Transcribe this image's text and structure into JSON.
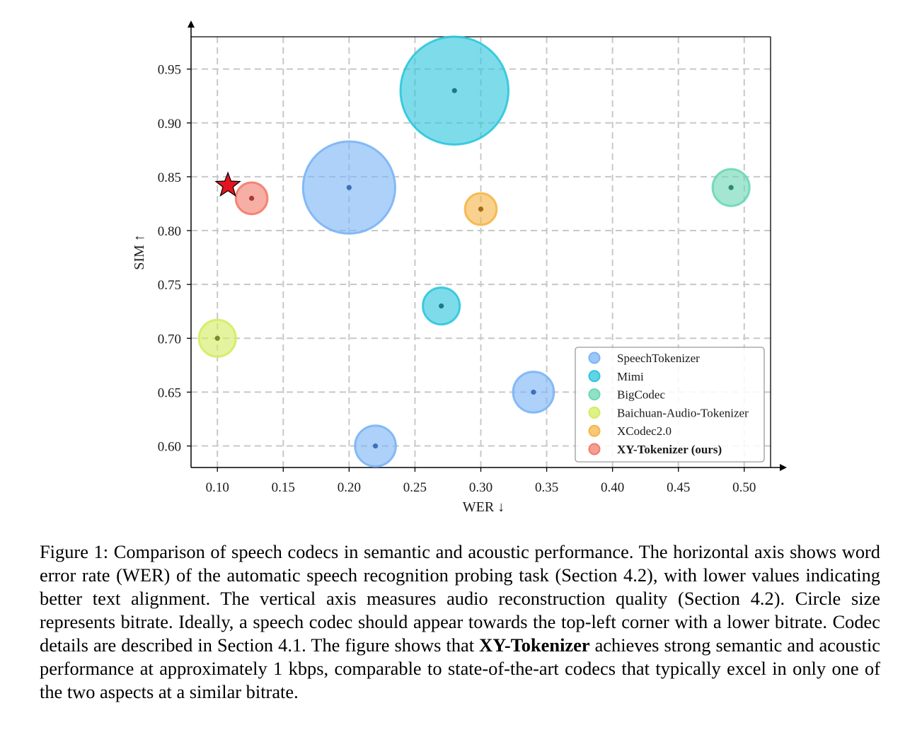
{
  "chart_data": {
    "type": "scatter",
    "xlabel": "WER ↓",
    "ylabel": "SIM ↑",
    "xlim": [
      0.08,
      0.52
    ],
    "ylim": [
      0.58,
      0.98
    ],
    "x_ticks": [
      "0.10",
      "0.15",
      "0.20",
      "0.25",
      "0.30",
      "0.35",
      "0.40",
      "0.45",
      "0.50"
    ],
    "y_ticks": [
      "0.60",
      "0.65",
      "0.70",
      "0.75",
      "0.80",
      "0.85",
      "0.90",
      "0.95"
    ],
    "grid": true,
    "legend_position": "bottom-right",
    "series": [
      {
        "name": "SpeechTokenizer",
        "color": "#7bb4f5",
        "dot_color": "#3f6fb8",
        "points": [
          {
            "x": 0.2,
            "y": 0.84,
            "size": 35
          },
          {
            "x": 0.22,
            "y": 0.6,
            "size": 15.5
          },
          {
            "x": 0.34,
            "y": 0.65,
            "size": 15.5
          }
        ]
      },
      {
        "name": "Mimi",
        "color": "#2ec6dd",
        "dot_color": "#1a7a8c",
        "points": [
          {
            "x": 0.28,
            "y": 0.93,
            "size": 41
          },
          {
            "x": 0.27,
            "y": 0.73,
            "size": 14
          }
        ]
      },
      {
        "name": "BigCodec",
        "color": "#6cd7b4",
        "dot_color": "#2f8a6a",
        "points": [
          {
            "x": 0.49,
            "y": 0.84,
            "size": 14
          }
        ]
      },
      {
        "name": "Baichuan-Audio-Tokenizer",
        "color": "#d4ec62",
        "dot_color": "#7a8a2a",
        "points": [
          {
            "x": 0.1,
            "y": 0.7,
            "size": 14
          }
        ]
      },
      {
        "name": "XCodec2.0",
        "color": "#f6b548",
        "dot_color": "#a36a1a",
        "points": [
          {
            "x": 0.3,
            "y": 0.82,
            "size": 12
          }
        ]
      },
      {
        "name": "XY-Tokenizer (ours)",
        "color": "#f27c6c",
        "dot_color": "#a63b30",
        "points": [
          {
            "x": 0.126,
            "y": 0.83,
            "size": 12
          }
        ]
      }
    ],
    "star_marker": {
      "x": 0.108,
      "y": 0.842,
      "color": "#e4141e"
    }
  },
  "caption": {
    "part1": "Figure 1: Comparison of speech codecs in semantic and acoustic performance. The horizontal axis shows word error rate (WER) of the automatic speech recognition probing task (Section 4.2), with lower values indicating better text alignment. The vertical axis measures audio reconstruction quality (Section 4.2).  Circle size represents bitrate.  Ideally, a speech codec should appear towards the top-left corner with a lower bitrate. Codec details are described in Section 4.1. The figure shows that ",
    "bold": "XY-Tokenizer",
    "part2": " achieves strong semantic and acoustic performance at approximately 1 kbps, comparable to state-of-the-art codecs that typically excel in only one of the two aspects at a similar bitrate."
  }
}
